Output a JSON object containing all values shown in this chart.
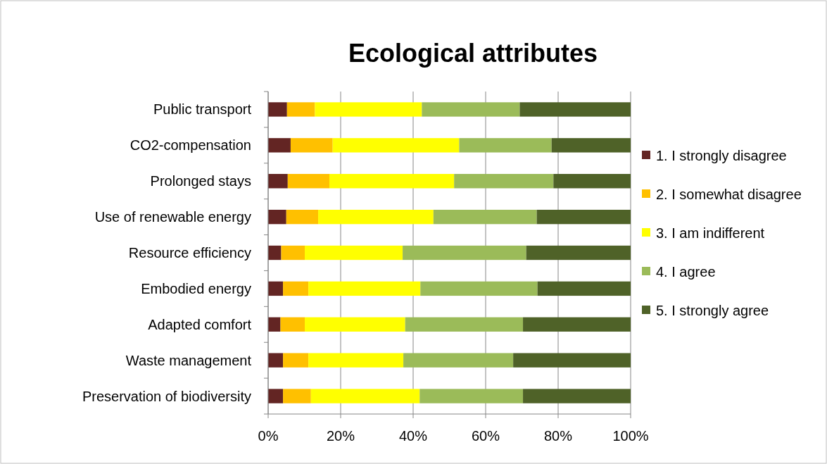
{
  "chart_data": {
    "type": "bar",
    "title": "Ecological attributes",
    "orientation": "horizontal",
    "stacked": true,
    "categories": [
      "Public transport",
      "CO2-compensation",
      "Prolonged stays",
      "Use of renewable energy",
      "Resource efficiency",
      "Embodied energy",
      "Adapted comfort",
      "Waste management",
      "Preservation of biodiversity"
    ],
    "series": [
      {
        "name": "1. I strongly disagree",
        "color": "#632523",
        "values": [
          5.2,
          6.2,
          5.4,
          5.0,
          3.6,
          4.1,
          3.4,
          4.1,
          4.1
        ]
      },
      {
        "name": "2. I somewhat disagree",
        "color": "#ffc000",
        "values": [
          7.7,
          11.6,
          11.5,
          8.8,
          6.5,
          7.0,
          6.7,
          7.0,
          7.7
        ]
      },
      {
        "name": "3. I am indifferent",
        "color": "#ffff00",
        "values": [
          29.5,
          34.9,
          34.4,
          31.8,
          27.0,
          30.9,
          27.7,
          26.2,
          30.0
        ]
      },
      {
        "name": "4. I agree",
        "color": "#9bbb59",
        "values": [
          27.0,
          25.5,
          27.4,
          28.5,
          34.1,
          32.3,
          32.5,
          30.3,
          28.5
        ]
      },
      {
        "name": "5. I strongly agree",
        "color": "#4f6228",
        "values": [
          30.6,
          21.8,
          21.3,
          25.9,
          28.8,
          25.7,
          29.7,
          32.4,
          29.7
        ]
      }
    ],
    "xlim": [
      0,
      100
    ],
    "xticks": [
      {
        "value": 0,
        "label": "0%"
      },
      {
        "value": 20,
        "label": "20%"
      },
      {
        "value": 40,
        "label": "40%"
      },
      {
        "value": 60,
        "label": "60%"
      },
      {
        "value": 80,
        "label": "80%"
      },
      {
        "value": 100,
        "label": "100%"
      }
    ],
    "grid": "x",
    "legend": "right"
  }
}
